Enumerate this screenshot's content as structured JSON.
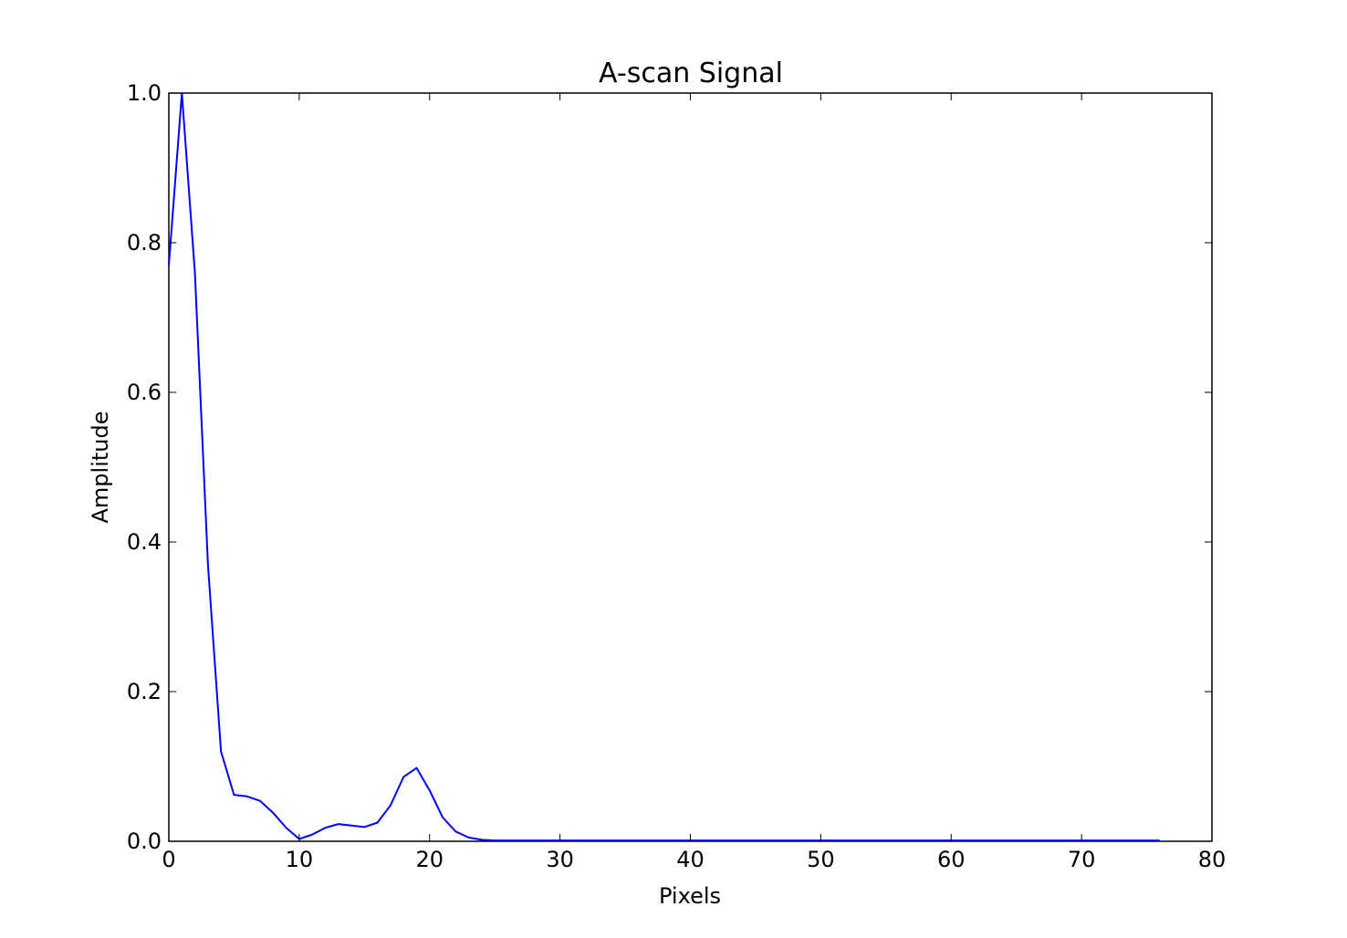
{
  "colors": {
    "background": "#ffffff",
    "axes": "#000000",
    "series_line": "#0000ff"
  },
  "chart_data": {
    "type": "line",
    "title": "A-scan Signal",
    "xlabel": "Pixels",
    "ylabel": "Amplitude",
    "xlim": [
      0,
      80
    ],
    "ylim": [
      0.0,
      1.0
    ],
    "xticks": [
      0,
      10,
      20,
      30,
      40,
      50,
      60,
      70,
      80
    ],
    "xtick_labels": [
      "0",
      "10",
      "20",
      "30",
      "40",
      "50",
      "60",
      "70",
      "80"
    ],
    "yticks": [
      0.0,
      0.2,
      0.4,
      0.6,
      0.8,
      1.0
    ],
    "ytick_labels": [
      "0.0",
      "0.2",
      "0.4",
      "0.6",
      "0.8",
      "1.0"
    ],
    "grid": false,
    "legend": "none",
    "series": [
      {
        "color": "#0000ff",
        "x": [
          0,
          1,
          2,
          3,
          4,
          5,
          6,
          7,
          8,
          9,
          10,
          11,
          12,
          13,
          14,
          15,
          16,
          17,
          18,
          19,
          20,
          21,
          22,
          23,
          24,
          25,
          26,
          27,
          28,
          29,
          30,
          31,
          32,
          33,
          34,
          35,
          36,
          37,
          38,
          39,
          40,
          41,
          42,
          43,
          44,
          45,
          46,
          47,
          48,
          49,
          50,
          51,
          52,
          53,
          54,
          55,
          56,
          57,
          58,
          59,
          60,
          61,
          62,
          63,
          64,
          65,
          66,
          67,
          68,
          69,
          70,
          71,
          72,
          73,
          74,
          75,
          76
        ],
        "y": [
          0.77,
          1.0,
          0.76,
          0.37,
          0.12,
          0.062,
          0.06,
          0.054,
          0.038,
          0.018,
          0.003,
          0.009,
          0.018,
          0.023,
          0.021,
          0.019,
          0.025,
          0.048,
          0.086,
          0.098,
          0.068,
          0.032,
          0.013,
          0.005,
          0.002,
          0.001,
          0.001,
          0.001,
          0.001,
          0.001,
          0.001,
          0.001,
          0.001,
          0.001,
          0.001,
          0.001,
          0.001,
          0.001,
          0.001,
          0.001,
          0.001,
          0.001,
          0.001,
          0.001,
          0.001,
          0.001,
          0.001,
          0.001,
          0.001,
          0.001,
          0.001,
          0.001,
          0.001,
          0.001,
          0.001,
          0.001,
          0.001,
          0.001,
          0.001,
          0.001,
          0.001,
          0.001,
          0.001,
          0.001,
          0.001,
          0.001,
          0.001,
          0.001,
          0.001,
          0.001,
          0.001,
          0.001,
          0.001,
          0.001,
          0.001,
          0.001,
          0.001
        ]
      }
    ]
  }
}
